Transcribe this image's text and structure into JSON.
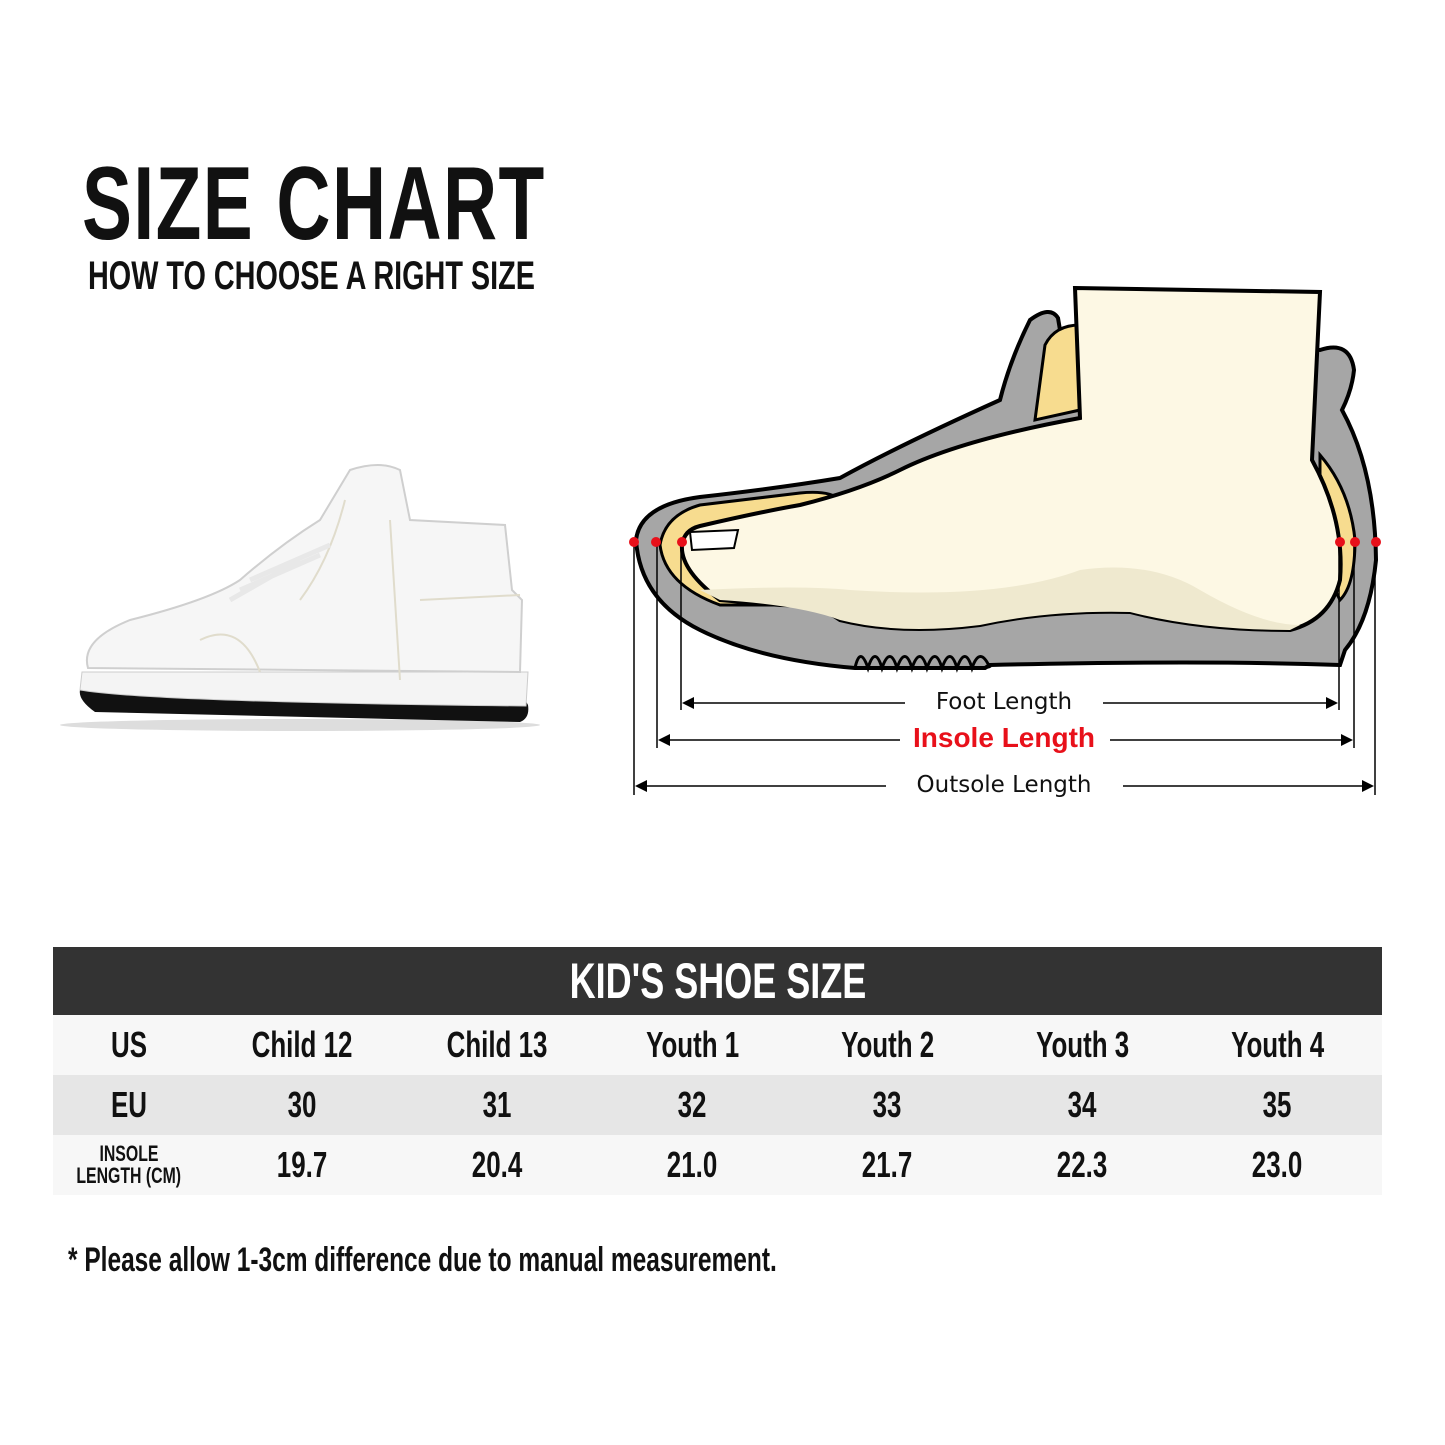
{
  "header": {
    "title": "SIZE CHART",
    "subtitle": "HOW TO CHOOSE A RIGHT SIZE"
  },
  "diagram": {
    "foot_length_label": "Foot Length",
    "insole_length_label": "Insole Length",
    "outsole_length_label": "Outsole Length",
    "colors": {
      "accent": "#e8101a",
      "sole": "#a6a6a6",
      "foot": "#fdf8e4",
      "insole": "#f7dc8f"
    }
  },
  "table": {
    "title": "KID'S SHOE SIZE",
    "rows": [
      {
        "label": "US",
        "values": [
          "Child 12",
          "Child 13",
          "Youth 1",
          "Youth 2",
          "Youth 3",
          "Youth 4"
        ]
      },
      {
        "label": "EU",
        "values": [
          "30",
          "31",
          "32",
          "33",
          "34",
          "35"
        ]
      },
      {
        "label_line1": "INSOLE",
        "label_line2": "LENGTH (CM)",
        "values": [
          "19.7",
          "20.4",
          "21.0",
          "21.7",
          "22.3",
          "23.0"
        ]
      }
    ]
  },
  "note": "* Please allow 1-3cm difference due to manual measurement."
}
